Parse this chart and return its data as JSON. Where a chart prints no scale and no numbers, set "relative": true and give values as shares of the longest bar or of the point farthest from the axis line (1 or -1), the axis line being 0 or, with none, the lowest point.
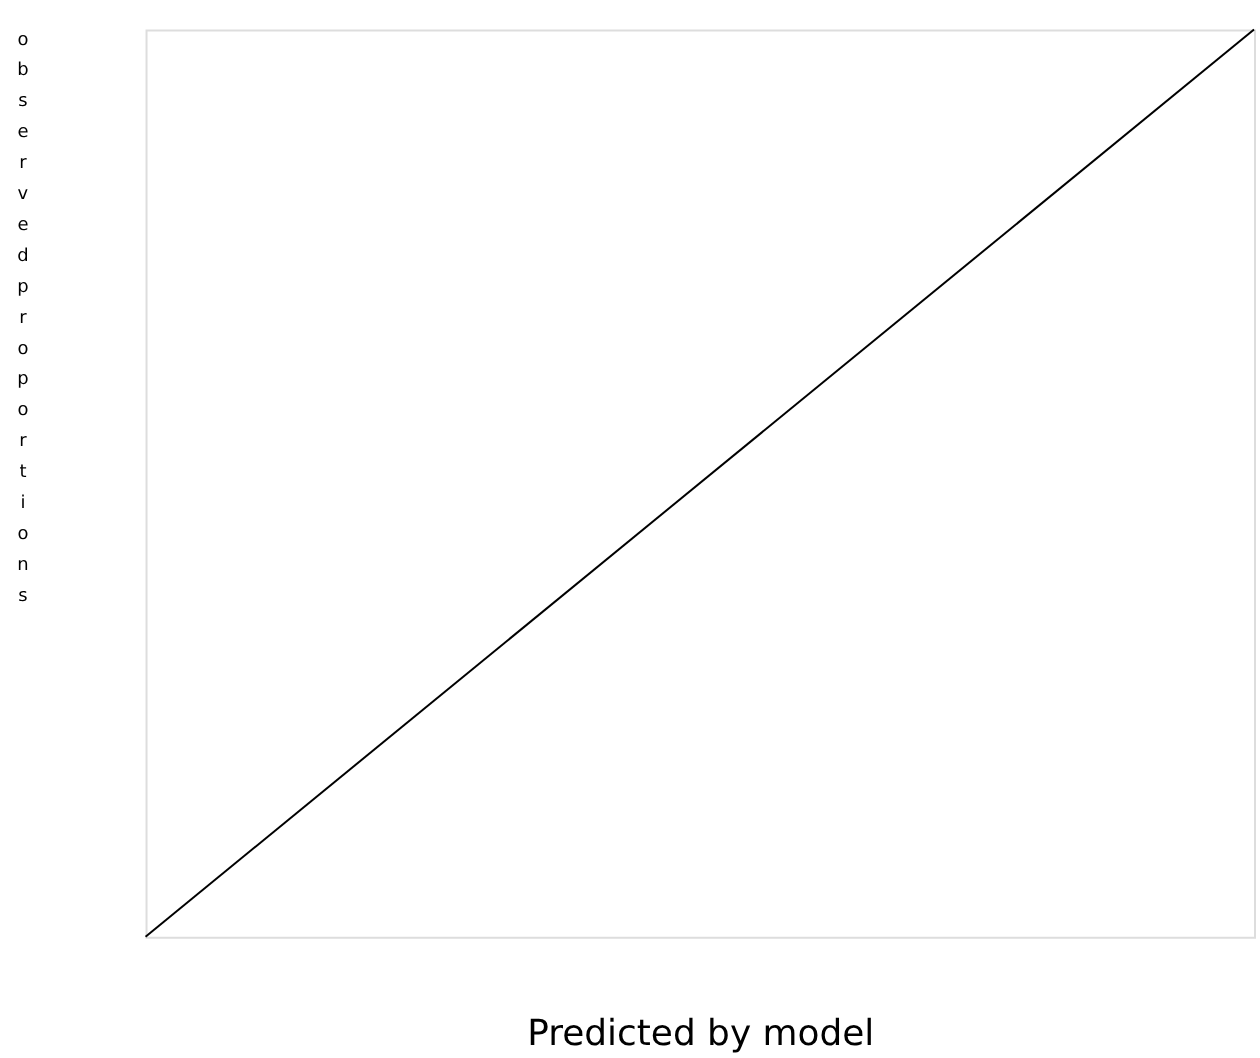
{
  "chart_data": {
    "type": "line",
    "relative": true,
    "categories": [
      null,
      null
    ],
    "series": [
      {
        "color": "#000000",
        "values": [
          0,
          1
        ]
      }
    ],
    "xlabel": "Predicted by model",
    "ylabel": "observed proportions",
    "grid": false,
    "marker": "none",
    "line_style": "solid",
    "tick_labels": false
  }
}
